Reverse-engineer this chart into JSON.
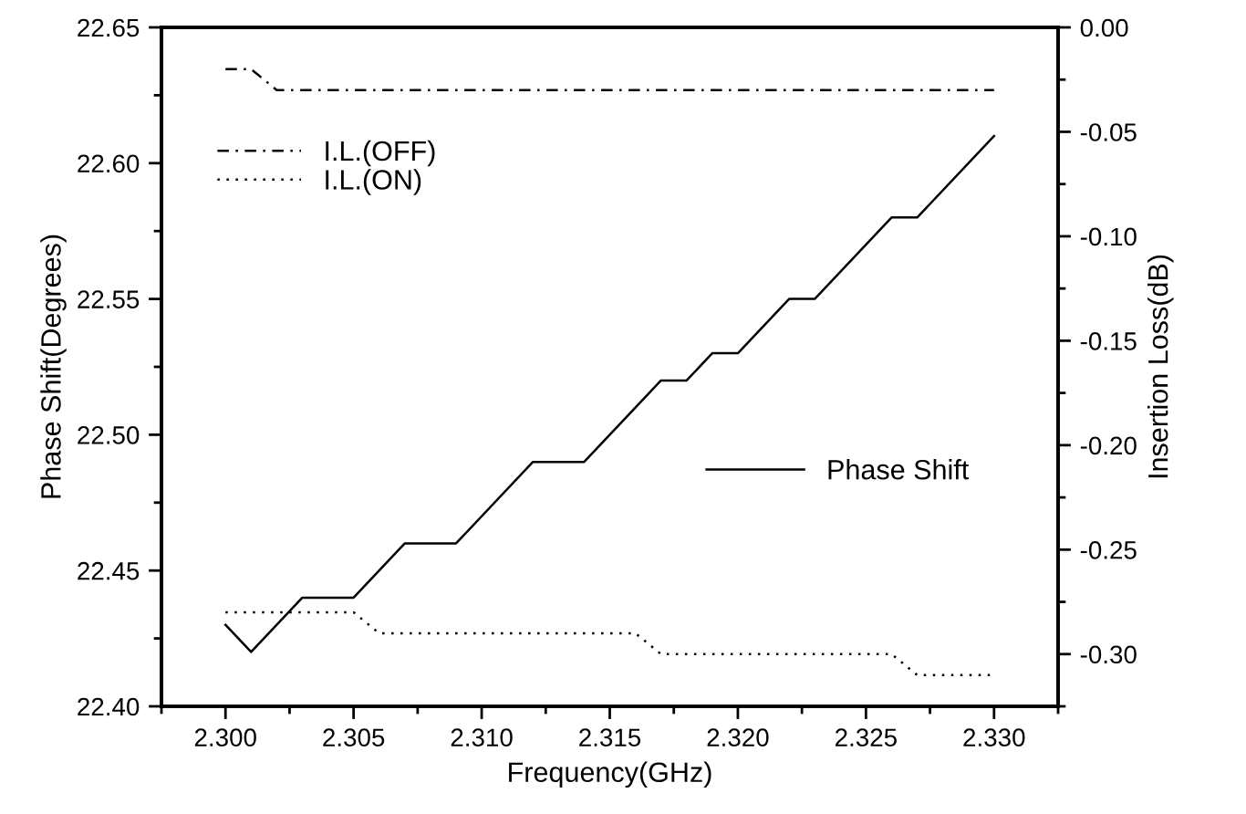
{
  "chart_data": {
    "type": "line",
    "xlabel": "Frequency(GHz)",
    "ylabel": "Phase Shift(Degrees)",
    "y2label": "Insertion Loss(dB)",
    "xlim": [
      2.2975,
      2.3325
    ],
    "xticks": [
      {
        "value": 2.3,
        "label": "2.300"
      },
      {
        "value": 2.305,
        "label": "2.305"
      },
      {
        "value": 2.31,
        "label": "2.310"
      },
      {
        "value": 2.315,
        "label": "2.315"
      },
      {
        "value": 2.32,
        "label": "2.320"
      },
      {
        "value": 2.325,
        "label": "2.325"
      },
      {
        "value": 2.33,
        "label": "2.330"
      }
    ],
    "ylim": [
      22.4,
      22.65
    ],
    "yticks": [
      {
        "value": 22.4,
        "label": "22.40"
      },
      {
        "value": 22.45,
        "label": "22.45"
      },
      {
        "value": 22.5,
        "label": "22.50"
      },
      {
        "value": 22.55,
        "label": "22.55"
      },
      {
        "value": 22.6,
        "label": "22.60"
      },
      {
        "value": 22.65,
        "label": "22.65"
      }
    ],
    "y2lim": [
      -0.325,
      0.0
    ],
    "y2ticks": [
      {
        "value": 0.0,
        "label": "0.00"
      },
      {
        "value": -0.05,
        "label": "-0.05"
      },
      {
        "value": -0.1,
        "label": "-0.10"
      },
      {
        "value": -0.15,
        "label": "-0.15"
      },
      {
        "value": -0.2,
        "label": "-0.20"
      },
      {
        "value": -0.25,
        "label": "-0.25"
      },
      {
        "value": -0.3,
        "label": "-0.30"
      }
    ],
    "grid": false,
    "legend": "top left",
    "marker": "none",
    "series": [
      {
        "name": "Phase Shift",
        "color": "#000000",
        "line_style": "solid",
        "x": [
          2.3,
          2.301,
          2.303,
          2.305,
          2.307,
          2.309,
          2.312,
          2.314,
          2.317,
          2.318,
          2.319,
          2.32,
          2.322,
          2.323,
          2.326,
          2.327,
          2.33
        ],
        "values": [
          22.43,
          22.42,
          22.44,
          22.44,
          22.46,
          22.46,
          22.49,
          22.49,
          22.52,
          22.52,
          22.53,
          22.53,
          22.55,
          22.55,
          22.58,
          22.58,
          22.61
        ]
      },
      {
        "name": "I.L.(OFF)",
        "color": "#000000",
        "line_style": "dashdot",
        "axis": "y2",
        "x": [
          2.3,
          2.301,
          2.302,
          2.33
        ],
        "values": [
          -0.02,
          -0.02,
          -0.03,
          -0.03
        ]
      },
      {
        "name": "I.L.(ON)",
        "color": "#000000",
        "line_style": "dotted",
        "axis": "y2",
        "x": [
          2.3,
          2.305,
          2.306,
          2.316,
          2.317,
          2.326,
          2.327,
          2.33
        ],
        "values": [
          -0.28,
          -0.28,
          -0.29,
          -0.29,
          -0.3,
          -0.3,
          -0.31,
          -0.31
        ]
      }
    ]
  }
}
